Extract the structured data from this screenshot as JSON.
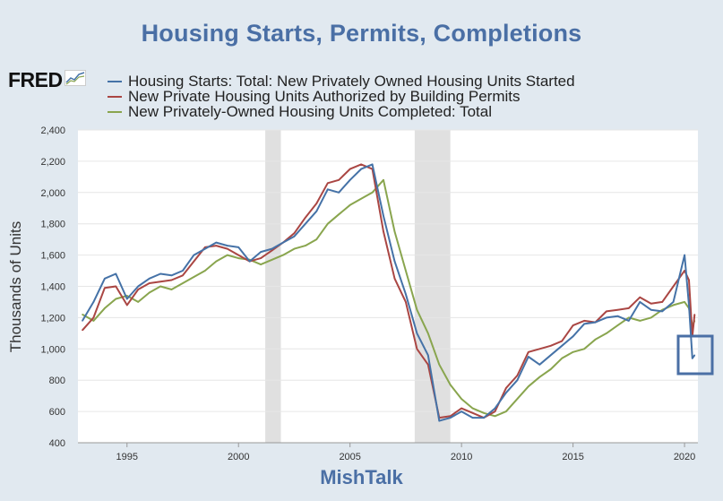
{
  "chart_data": {
    "type": "line",
    "title": "Housing Starts, Permits, Completions",
    "ylabel": "Thousands of Units",
    "xlabel": "",
    "xlim": [
      1992.8,
      2020.6
    ],
    "ylim": [
      400,
      2400
    ],
    "yticks": [
      400,
      600,
      800,
      1000,
      1200,
      1400,
      1600,
      1800,
      2000,
      2200,
      2400
    ],
    "ytick_labels": [
      "400",
      "600",
      "800",
      "1,000",
      "1,200",
      "1,400",
      "1,600",
      "1,800",
      "2,000",
      "2,200",
      "2,400"
    ],
    "xticks": [
      1995,
      2000,
      2005,
      2010,
      2015,
      2020
    ],
    "xtick_labels": [
      "1995",
      "2000",
      "2005",
      "2010",
      "2015",
      "2020"
    ],
    "recessions": [
      [
        2001.2,
        2001.9
      ],
      [
        2007.9,
        2009.5
      ]
    ],
    "series": [
      {
        "name": "Housing Starts: Total: New Privately Owned Housing Units Started",
        "color": "#4572a7",
        "x": [
          1993.0,
          1993.5,
          1994.0,
          1994.5,
          1995.0,
          1995.5,
          1996.0,
          1996.5,
          1997.0,
          1997.5,
          1998.0,
          1998.5,
          1999.0,
          1999.5,
          2000.0,
          2000.5,
          2001.0,
          2001.5,
          2002.0,
          2002.5,
          2003.0,
          2003.5,
          2004.0,
          2004.5,
          2005.0,
          2005.5,
          2006.0,
          2006.5,
          2007.0,
          2007.5,
          2008.0,
          2008.5,
          2009.0,
          2009.5,
          2010.0,
          2010.5,
          2011.0,
          2011.5,
          2012.0,
          2012.5,
          2013.0,
          2013.5,
          2014.0,
          2014.5,
          2015.0,
          2015.5,
          2016.0,
          2016.5,
          2017.0,
          2017.5,
          2018.0,
          2018.5,
          2019.0,
          2019.5,
          2020.0,
          2020.2,
          2020.35,
          2020.45
        ],
        "values": [
          1180,
          1300,
          1450,
          1480,
          1320,
          1400,
          1450,
          1480,
          1470,
          1500,
          1600,
          1640,
          1680,
          1660,
          1650,
          1560,
          1620,
          1640,
          1680,
          1720,
          1800,
          1880,
          2020,
          2000,
          2080,
          2150,
          2180,
          1850,
          1560,
          1350,
          1100,
          960,
          540,
          560,
          600,
          560,
          560,
          620,
          720,
          800,
          950,
          900,
          960,
          1020,
          1080,
          1160,
          1170,
          1200,
          1210,
          1180,
          1300,
          1250,
          1240,
          1300,
          1600,
          1280,
          940,
          960
        ]
      },
      {
        "name": "New Private Housing Units Authorized by Building Permits",
        "color": "#aa4643",
        "x": [
          1993.0,
          1993.5,
          1994.0,
          1994.5,
          1995.0,
          1995.5,
          1996.0,
          1996.5,
          1997.0,
          1997.5,
          1998.0,
          1998.5,
          1999.0,
          1999.5,
          2000.0,
          2000.5,
          2001.0,
          2001.5,
          2002.0,
          2002.5,
          2003.0,
          2003.5,
          2004.0,
          2004.5,
          2005.0,
          2005.5,
          2006.0,
          2006.5,
          2007.0,
          2007.5,
          2008.0,
          2008.5,
          2009.0,
          2009.5,
          2010.0,
          2010.5,
          2011.0,
          2011.5,
          2012.0,
          2012.5,
          2013.0,
          2013.5,
          2014.0,
          2014.5,
          2015.0,
          2015.5,
          2016.0,
          2016.5,
          2017.0,
          2017.5,
          2018.0,
          2018.5,
          2019.0,
          2019.5,
          2020.0,
          2020.2,
          2020.35,
          2020.45
        ],
        "values": [
          1120,
          1200,
          1390,
          1400,
          1280,
          1380,
          1420,
          1430,
          1440,
          1470,
          1560,
          1650,
          1660,
          1640,
          1600,
          1560,
          1580,
          1630,
          1680,
          1740,
          1840,
          1930,
          2060,
          2080,
          2150,
          2180,
          2150,
          1750,
          1450,
          1300,
          1000,
          900,
          560,
          570,
          620,
          590,
          560,
          600,
          750,
          830,
          980,
          1000,
          1020,
          1050,
          1150,
          1180,
          1170,
          1240,
          1250,
          1260,
          1330,
          1290,
          1300,
          1400,
          1500,
          1440,
          1080,
          1220
        ]
      },
      {
        "name": "New Privately-Owned Housing Units Completed: Total",
        "color": "#89a54e",
        "x": [
          1993.0,
          1993.5,
          1994.0,
          1994.5,
          1995.0,
          1995.5,
          1996.0,
          1996.5,
          1997.0,
          1997.5,
          1998.0,
          1998.5,
          1999.0,
          1999.5,
          2000.0,
          2000.5,
          2001.0,
          2001.5,
          2002.0,
          2002.5,
          2003.0,
          2003.5,
          2004.0,
          2004.5,
          2005.0,
          2005.5,
          2006.0,
          2006.5,
          2007.0,
          2007.5,
          2008.0,
          2008.5,
          2009.0,
          2009.5,
          2010.0,
          2010.5,
          2011.0,
          2011.5,
          2012.0,
          2012.5,
          2013.0,
          2013.5,
          2014.0,
          2014.5,
          2015.0,
          2015.5,
          2016.0,
          2016.5,
          2017.0,
          2017.5,
          2018.0,
          2018.5,
          2019.0,
          2019.5,
          2020.0,
          2020.2,
          2020.35,
          2020.45
        ],
        "values": [
          1220,
          1180,
          1260,
          1320,
          1340,
          1300,
          1360,
          1400,
          1380,
          1420,
          1460,
          1500,
          1560,
          1600,
          1580,
          1570,
          1540,
          1570,
          1600,
          1640,
          1660,
          1700,
          1800,
          1860,
          1920,
          1960,
          2000,
          2080,
          1750,
          1500,
          1250,
          1100,
          900,
          770,
          680,
          620,
          590,
          570,
          600,
          680,
          760,
          820,
          870,
          940,
          980,
          1000,
          1060,
          1100,
          1150,
          1200,
          1180,
          1200,
          1250,
          1280,
          1300,
          1260,
          1150,
          1180
        ]
      }
    ]
  },
  "header": {
    "title": "Housing Starts, Permits, Completions",
    "logo_text": "FRED"
  },
  "legend": {
    "items": [
      {
        "label": "Housing Starts: Total: New Privately Owned Housing Units Started",
        "color": "#4572a7"
      },
      {
        "label": "New Private Housing Units Authorized by Building Permits",
        "color": "#aa4643"
      },
      {
        "label": "New Privately-Owned Housing Units Completed: Total",
        "color": "#89a54e"
      }
    ]
  },
  "footer": {
    "watermark": "MishTalk"
  },
  "colors": {
    "title": "#4a6fa5",
    "highlight_box": "#4a6fa5",
    "recession": "#e0e0e0"
  }
}
